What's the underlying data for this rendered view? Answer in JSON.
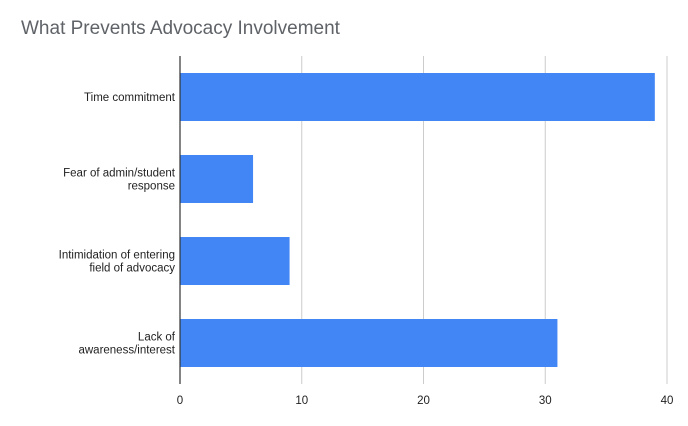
{
  "chart_data": {
    "type": "bar",
    "orientation": "horizontal",
    "title": "What Prevents Advocacy Involvement",
    "categories": [
      "Time commitment",
      "Fear of admin/student response",
      "Intimidation of entering field of advocacy",
      "Lack of awareness/interest"
    ],
    "category_lines": [
      [
        "Time commitment"
      ],
      [
        "Fear of admin/student",
        "response"
      ],
      [
        "Intimidation of entering",
        "field of advocacy"
      ],
      [
        "Lack of",
        "awareness/interest"
      ]
    ],
    "values": [
      39,
      6,
      9,
      31
    ],
    "xlim": [
      0,
      40
    ],
    "x_ticks": [
      0,
      10,
      20,
      30,
      40
    ],
    "grid": true,
    "legend": "none",
    "bar_color": "#4285f4",
    "grid_color": "#cccccc",
    "axis_color": "#333333"
  }
}
